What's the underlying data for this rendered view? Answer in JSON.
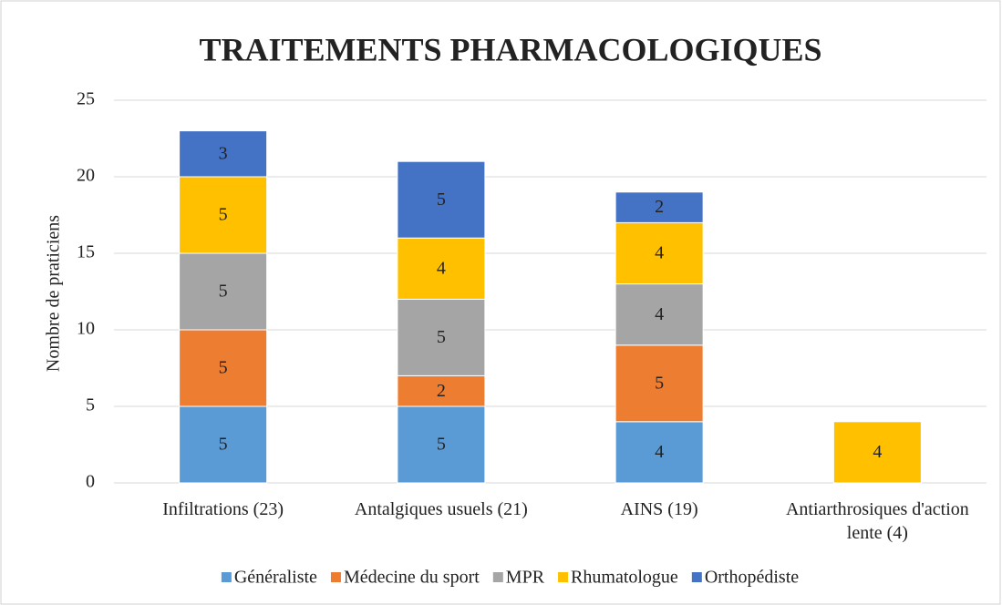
{
  "chart_data": {
    "type": "stacked_bar",
    "title": "TRAITEMENTS PHARMACOLOGIQUES",
    "y_label": "Nombre de praticiens",
    "categories": [
      "Infiltrations (23)",
      "Antalgiques usuels (21)",
      "AINS (19)",
      "Antiarthrosiques d'action lente (4)"
    ],
    "series": [
      {
        "name": "Généraliste",
        "color": "#5b9bd5",
        "values": [
          5,
          5,
          4,
          null
        ]
      },
      {
        "name": "Médecine du sport",
        "color": "#ed7d31",
        "values": [
          5,
          2,
          5,
          null
        ]
      },
      {
        "name": "MPR",
        "color": "#a5a5a5",
        "values": [
          5,
          5,
          4,
          null
        ]
      },
      {
        "name": "Rhumatologue",
        "color": "#ffc000",
        "values": [
          5,
          4,
          4,
          4
        ]
      },
      {
        "name": "Orthopédiste",
        "color": "#4472c4",
        "values": [
          3,
          5,
          2,
          null
        ]
      }
    ],
    "ylim": [
      0,
      25
    ],
    "yticks": [
      0,
      5,
      10,
      15,
      20,
      25
    ],
    "grid": true,
    "legend": "bottom"
  }
}
